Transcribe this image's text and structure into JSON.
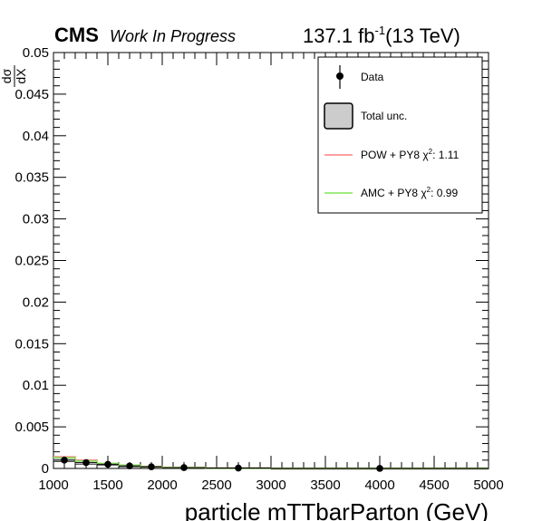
{
  "header": {
    "experiment": "CMS",
    "status": "Work In Progress",
    "lumi_value": "137.1 fb",
    "lumi_exp": "-1",
    "energy": "(13 TeV)"
  },
  "chart_data": {
    "type": "scatter",
    "title": "",
    "xlabel": "particle mTTbarParton (GeV)",
    "ylabel_num": "dσ",
    "ylabel_den": "dX",
    "xlim": [
      1000,
      5000
    ],
    "ylim": [
      0,
      0.05
    ],
    "x_ticks": [
      "1000",
      "1500",
      "2000",
      "2500",
      "3000",
      "3500",
      "4000",
      "4500",
      "5000"
    ],
    "y_ticks": [
      "0",
      "0.005",
      "0.01",
      "0.015",
      "0.02",
      "0.025",
      "0.03",
      "0.035",
      "0.04",
      "0.045",
      "0.05"
    ],
    "bin_edges": [
      1000,
      1200,
      1400,
      1600,
      1800,
      2000,
      2400,
      3000,
      5000
    ],
    "legend_position": "top-right",
    "colors": {
      "data": "#000000",
      "total_unc": "#cccccc",
      "pow_py8": "#ff8080",
      "amc_py8": "#80e65a"
    },
    "series": [
      {
        "name": "Data",
        "kind": "points",
        "x": [
          1100,
          1300,
          1500,
          1700,
          1900,
          2200,
          2700,
          4000
        ],
        "y": [
          0.001,
          0.0007,
          0.0005,
          0.0003,
          0.0002,
          0.0001,
          5e-05,
          1e-05
        ]
      },
      {
        "name": "Total unc.",
        "kind": "band",
        "low": [
          0.0008,
          0.0005,
          0.0004,
          0.0002,
          0.00015,
          7e-05,
          3e-05,
          5e-06
        ],
        "high": [
          0.0013,
          0.0009,
          0.0006,
          0.0004,
          0.00025,
          0.00013,
          7e-05,
          1.5e-05
        ]
      },
      {
        "name": "POW + PY8",
        "chi2": "1.11",
        "kind": "line",
        "y": [
          0.0014,
          0.001,
          0.0006,
          0.0004,
          0.00025,
          0.00012,
          5e-05,
          1e-05
        ]
      },
      {
        "name": "AMC + PY8",
        "chi2": "0.99",
        "kind": "line",
        "y": [
          0.0013,
          0.0009,
          0.0006,
          0.0004,
          0.00022,
          0.00011,
          4e-05,
          1e-05
        ]
      }
    ],
    "legend": {
      "data_label": "Data",
      "unc_label": "Total unc.",
      "pow_label": "POW + PY8 χ",
      "pow_chi2": ": 1.11",
      "amc_label": "AMC + PY8 χ",
      "amc_chi2": ": 0.99",
      "chi2_exp": "2"
    }
  }
}
